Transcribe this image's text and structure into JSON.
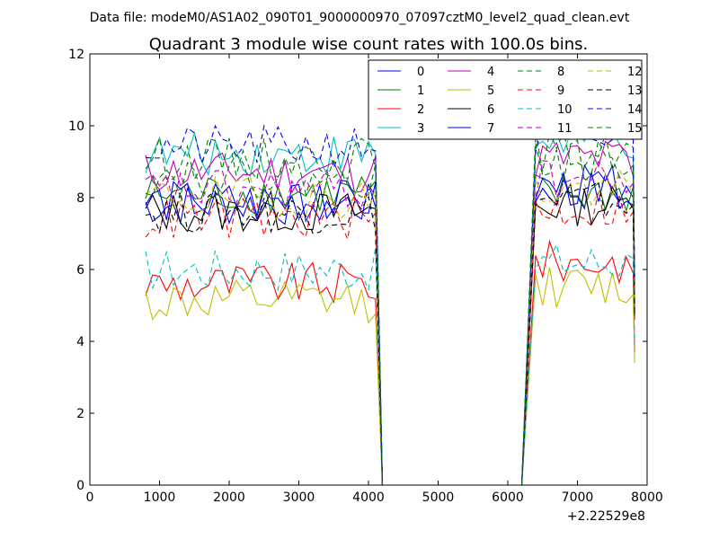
{
  "suptitle": "Data file: modeM0/AS1A02_090T01_9000000970_07097cztM0_level2_quad_clean.evt",
  "chart_data": {
    "type": "line",
    "title": "Quadrant 3 module wise count rates with 100.0s bins.",
    "xlabel": "",
    "ylabel": "",
    "x_offset_label": "+2.22529e8",
    "xlim": [
      0,
      8000
    ],
    "ylim": [
      0,
      12
    ],
    "x_ticks": [
      0,
      1000,
      2000,
      3000,
      4000,
      5000,
      6000,
      7000,
      8000
    ],
    "y_ticks": [
      0,
      2,
      4,
      6,
      8,
      10,
      12
    ],
    "grid": false,
    "legend_position": "top-right",
    "legend_columns": 4,
    "segments_x": {
      "seg1_start": 800,
      "seg1_end": 4100,
      "gap_drop_end": 4200,
      "gap_rise_start": 6200,
      "seg2_start": 6400,
      "seg2_end": 7800,
      "final_x": 7820,
      "step": 100
    },
    "series": [
      {
        "name": "0",
        "color": "#0000ff",
        "dash": false,
        "base1": 7.8,
        "base2": 8.2,
        "end": 8.0,
        "final": 5.0
      },
      {
        "name": "1",
        "color": "#008000",
        "dash": false,
        "base1": 8.1,
        "base2": 8.1,
        "end": 8.3,
        "final": 5.2
      },
      {
        "name": "2",
        "color": "#ff0000",
        "dash": false,
        "base1": 5.6,
        "base2": 6.2,
        "end": 5.9,
        "final": 3.7
      },
      {
        "name": "3",
        "color": "#00bfbf",
        "dash": false,
        "base1": 9.2,
        "base2": 9.6,
        "end": 9.1,
        "final": 5.6
      },
      {
        "name": "4",
        "color": "#bf00bf",
        "dash": false,
        "base1": 8.7,
        "base2": 9.1,
        "end": 8.6,
        "final": 5.5
      },
      {
        "name": "5",
        "color": "#bfbf00",
        "dash": false,
        "base1": 5.1,
        "base2": 5.5,
        "end": 5.3,
        "final": 3.4
      },
      {
        "name": "6",
        "color": "#000000",
        "dash": false,
        "base1": 7.6,
        "base2": 7.8,
        "end": 7.7,
        "final": 4.7
      },
      {
        "name": "7",
        "color": "#0000ff",
        "dash": false,
        "base1": 7.9,
        "base2": 8.3,
        "end": 7.8,
        "final": 4.9
      },
      {
        "name": "8",
        "color": "#008000",
        "dash": true,
        "base1": 9.1,
        "base2": 9.3,
        "end": 9.4,
        "final": 5.6
      },
      {
        "name": "9",
        "color": "#ff0000",
        "dash": true,
        "base1": 7.4,
        "base2": 7.7,
        "end": 7.6,
        "final": 4.6
      },
      {
        "name": "10",
        "color": "#00bfbf",
        "dash": true,
        "base1": 6.0,
        "base2": 6.2,
        "end": 6.3,
        "final": 3.9
      },
      {
        "name": "11",
        "color": "#bf00bf",
        "dash": true,
        "base1": 8.2,
        "base2": 8.5,
        "end": 8.4,
        "final": 5.1
      },
      {
        "name": "12",
        "color": "#bfbf00",
        "dash": true,
        "base1": 8.0,
        "base2": 8.2,
        "end": 8.1,
        "final": 5.0
      },
      {
        "name": "13",
        "color": "#000000",
        "dash": true,
        "base1": 7.6,
        "base2": 7.9,
        "end": 7.8,
        "final": 4.8
      },
      {
        "name": "14",
        "color": "#0000ff",
        "dash": true,
        "base1": 9.4,
        "base2": 9.6,
        "end": 9.6,
        "final": 5.7
      },
      {
        "name": "15",
        "color": "#008000",
        "dash": true,
        "base1": 8.6,
        "base2": 9.0,
        "end": 8.9,
        "final": 5.3
      }
    ]
  }
}
